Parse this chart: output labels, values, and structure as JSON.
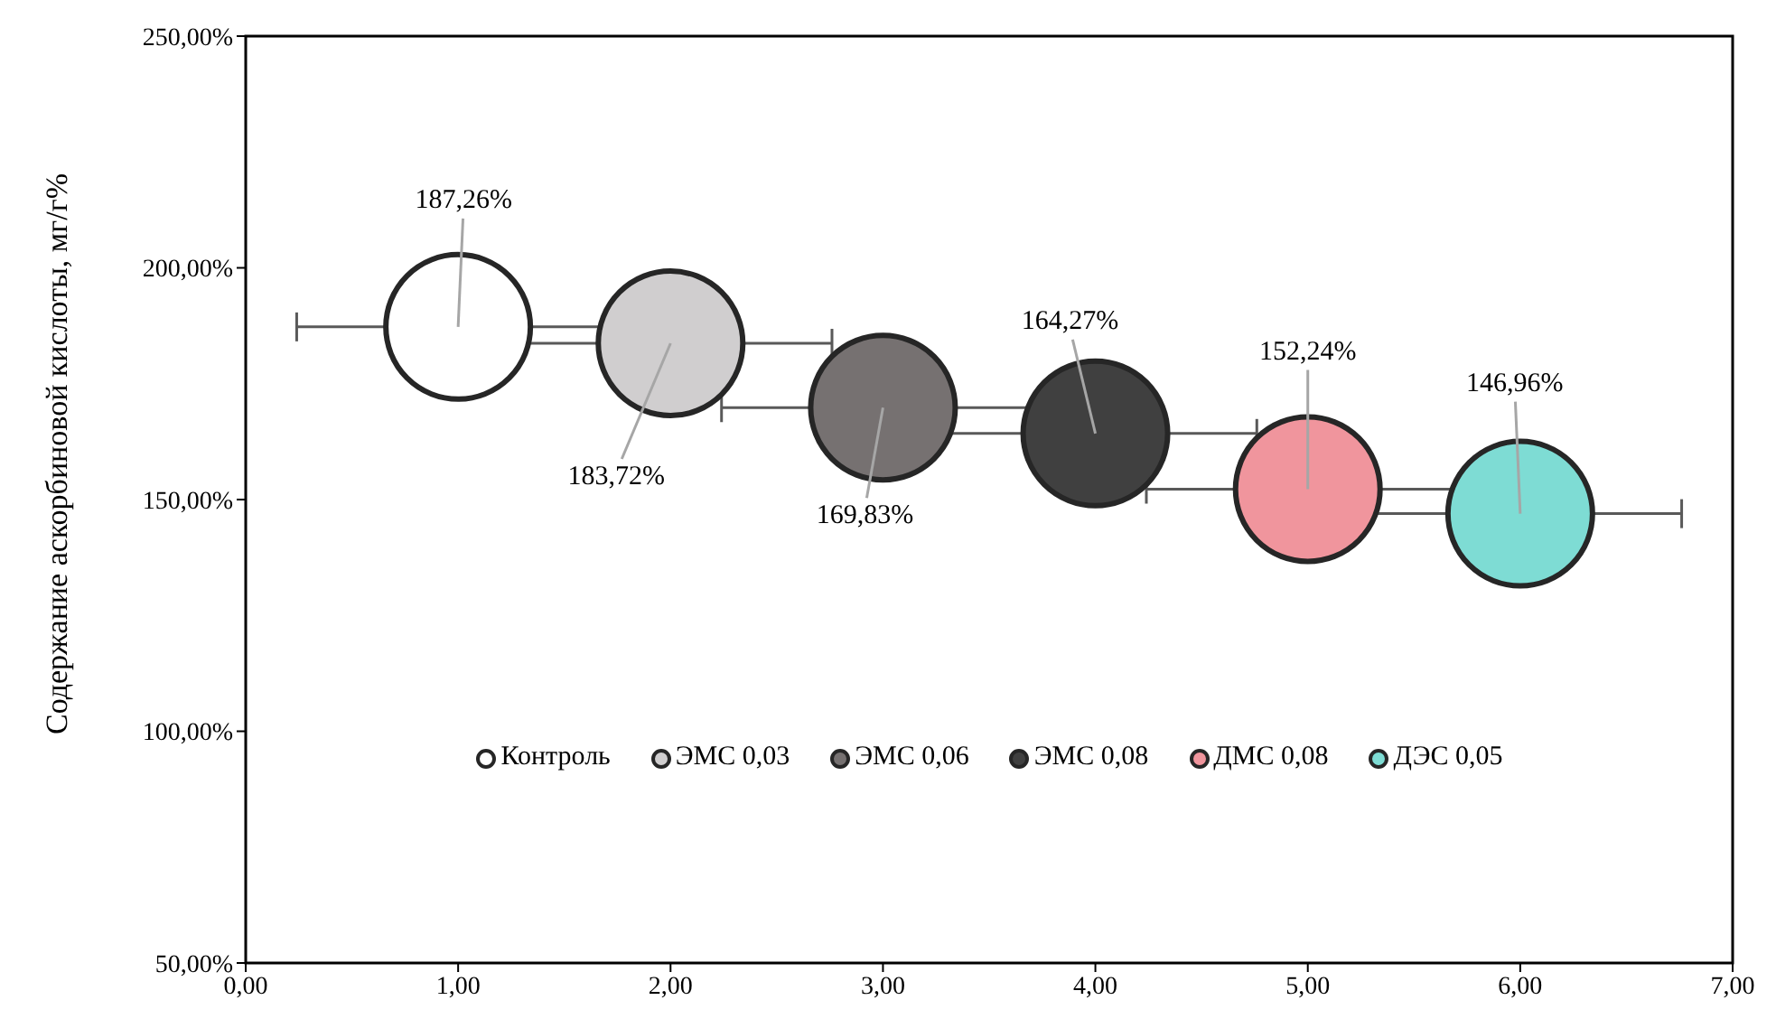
{
  "chart_data": {
    "type": "bubble",
    "ylabel": "Содержание аскорбиновой кислоты, мг/г%",
    "series": [
      {
        "name": "Контроль",
        "color": "#ffffff",
        "x": [
          1
        ],
        "values": [
          187.26
        ],
        "sizes": [
          1
        ],
        "xerrors": [
          0.76
        ],
        "value_labels": [
          "187,26%"
        ]
      },
      {
        "name": "ЭМС 0,03",
        "color": "#d0cecf",
        "x": [
          2
        ],
        "values": [
          183.72
        ],
        "sizes": [
          1
        ],
        "xerrors": [
          0.76
        ],
        "value_labels": [
          "183,72%"
        ]
      },
      {
        "name": "ЭМС 0,06",
        "color": "#767171",
        "x": [
          3
        ],
        "values": [
          169.83
        ],
        "sizes": [
          1
        ],
        "xerrors": [
          0.76
        ],
        "value_labels": [
          "169,83%"
        ]
      },
      {
        "name": "ЭМС 0,08",
        "color": "#404040",
        "x": [
          4
        ],
        "values": [
          164.27
        ],
        "sizes": [
          1
        ],
        "xerrors": [
          0.76
        ],
        "value_labels": [
          "164,27%"
        ]
      },
      {
        "name": "ДМС 0,08",
        "color": "#f0959d",
        "x": [
          5
        ],
        "values": [
          152.24
        ],
        "sizes": [
          1
        ],
        "xerrors": [
          0.76
        ],
        "value_labels": [
          "152,24%"
        ]
      },
      {
        "name": "ДЭС 0,05",
        "color": "#7edcd4",
        "x": [
          6
        ],
        "values": [
          146.96
        ],
        "sizes": [
          1
        ],
        "xerrors": [
          0.76
        ],
        "value_labels": [
          "146,96%"
        ]
      }
    ],
    "xlim": [
      0,
      7
    ],
    "xticks": [
      {
        "value": 0,
        "label": "0,00"
      },
      {
        "value": 1,
        "label": "1,00"
      },
      {
        "value": 2,
        "label": "2,00"
      },
      {
        "value": 3,
        "label": "3,00"
      },
      {
        "value": 4,
        "label": "4,00"
      },
      {
        "value": 5,
        "label": "5,00"
      },
      {
        "value": 6,
        "label": "6,00"
      },
      {
        "value": 7,
        "label": "7,00"
      }
    ],
    "ylim": [
      50,
      250
    ],
    "yticks": [
      {
        "value": 50,
        "label": "50,00%"
      },
      {
        "value": 100,
        "label": "100,00%"
      },
      {
        "value": 150,
        "label": "150,00%"
      },
      {
        "value": 200,
        "label": "200,00%"
      },
      {
        "value": 250,
        "label": "250,00%"
      }
    ],
    "grid": false,
    "legend": "bottom"
  }
}
